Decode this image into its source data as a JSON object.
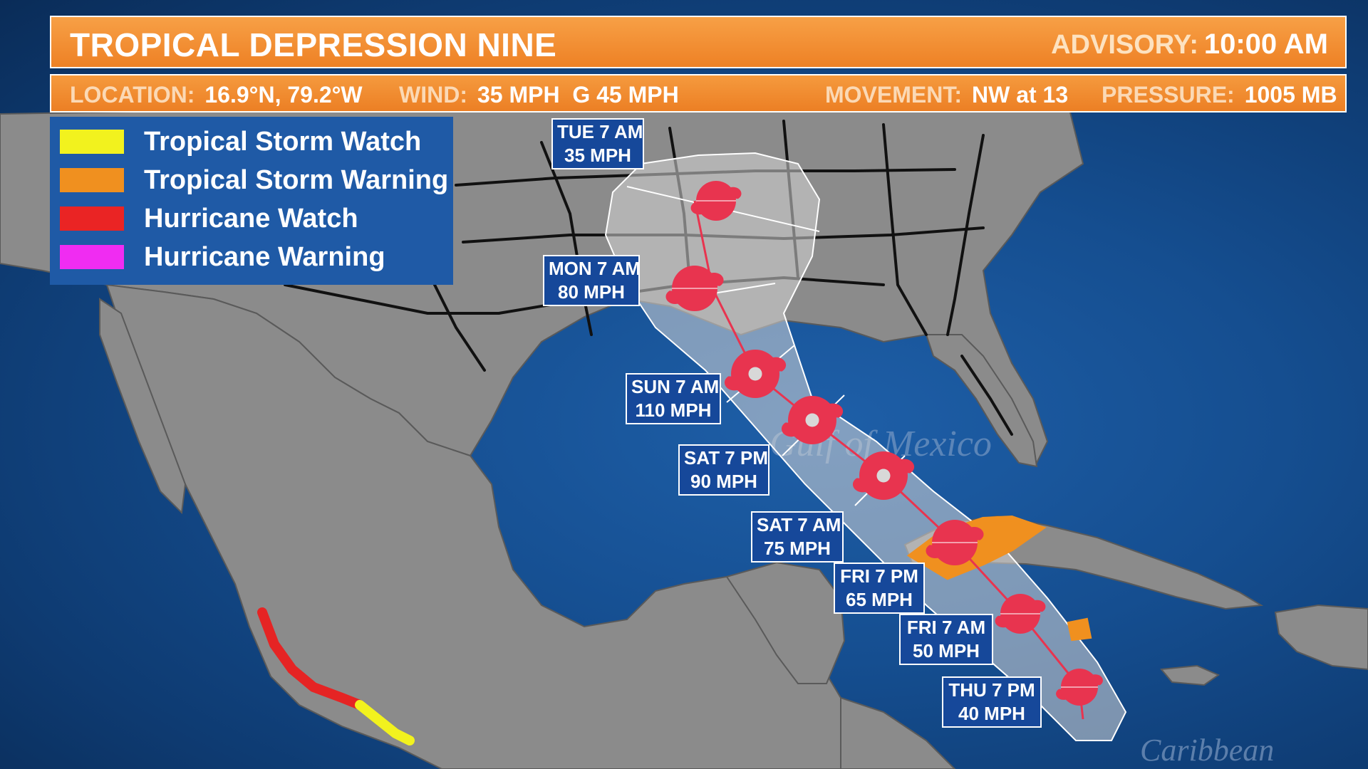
{
  "header": {
    "title": "TROPICAL DEPRESSION NINE",
    "advisory_label": "ADVISORY:",
    "advisory_value": "10:00 AM"
  },
  "info": {
    "location_label": "LOCATION:",
    "location_value": "16.9°N, 79.2°W",
    "wind_label": "WIND:",
    "wind_value": "35 MPH  G 45 MPH",
    "movement_label": "MOVEMENT:",
    "movement_value": "NW at 13",
    "pressure_label": "PRESSURE:",
    "pressure_value": "1005 MB"
  },
  "legend": {
    "items": [
      {
        "label": "Tropical Storm Watch",
        "color": "#f2f21e"
      },
      {
        "label": "Tropical Storm Warning",
        "color": "#f0901f"
      },
      {
        "label": "Hurricane Watch",
        "color": "#ea2424"
      },
      {
        "label": "Hurricane Warning",
        "color": "#f02cf2"
      }
    ]
  },
  "forecast_points": [
    {
      "time": "THU 7 PM",
      "wind": "40 MPH"
    },
    {
      "time": "FRI 7 AM",
      "wind": "50 MPH"
    },
    {
      "time": "FRI 7 PM",
      "wind": "65 MPH"
    },
    {
      "time": "SAT 7 AM",
      "wind": "75 MPH"
    },
    {
      "time": "SAT 7 PM",
      "wind": "90 MPH"
    },
    {
      "time": "SUN 7 AM",
      "wind": "110 MPH"
    },
    {
      "time": "MON 7 AM",
      "wind": "80 MPH"
    },
    {
      "time": "TUE 7 AM",
      "wind": "35 MPH"
    }
  ],
  "map_labels": {
    "gulf": "Gulf of Mexico",
    "caribbean": "Caribbean"
  },
  "colors": {
    "land": "#8a8a8a",
    "water": "#1a5498",
    "track": "#e8344f",
    "cone": "#c8c8c8",
    "header_orange": "#ef8a2c",
    "label_blue": "#16489a"
  }
}
